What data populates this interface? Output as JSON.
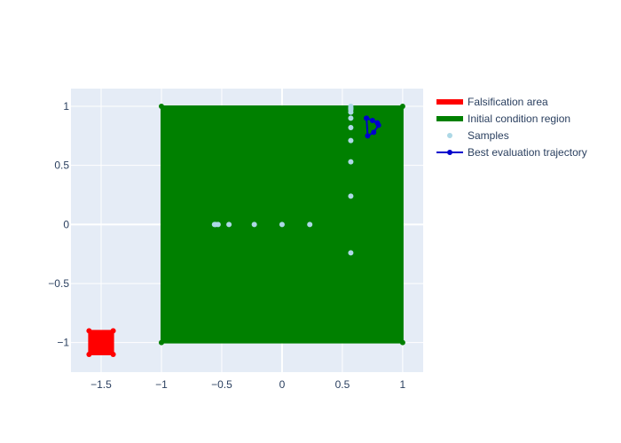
{
  "chart_data": {
    "type": "scatter",
    "title": "",
    "xlabel": "",
    "ylabel": "",
    "xlim": [
      -1.75,
      1.17
    ],
    "ylim": [
      -1.25,
      1.15
    ],
    "x_ticks": [
      -1.5,
      -1,
      -0.5,
      0,
      0.5,
      1
    ],
    "x_tick_labels": [
      "−1.5",
      "−1",
      "−0.5",
      "0",
      "0.5",
      "1"
    ],
    "y_ticks": [
      -1,
      -0.5,
      0,
      0.5,
      1
    ],
    "y_tick_labels": [
      "−1",
      "−0.5",
      "0",
      "0.5",
      "1"
    ],
    "grid": true,
    "legend_position": "top-right, outside plot",
    "series": [
      {
        "name": "Falsification area",
        "kind": "filled-polygon",
        "color": "#ff0000",
        "x": [
          -1.6,
          -1.4,
          -1.4,
          -1.6,
          -1.6
        ],
        "y": [
          -1.1,
          -1.1,
          -0.9,
          -0.9,
          -1.1
        ]
      },
      {
        "name": "Initial condition region",
        "kind": "filled-polygon",
        "color": "#008000",
        "x": [
          -1,
          1,
          1,
          -1,
          -1
        ],
        "y": [
          -1,
          -1,
          1,
          1,
          -1
        ]
      },
      {
        "name": "Samples",
        "kind": "markers",
        "color": "#add8e6",
        "x": [
          -0.56,
          -0.55,
          -0.53,
          -0.44,
          -0.23,
          0.0,
          0.23,
          0.57,
          0.57,
          0.57,
          0.57,
          0.57,
          0.57,
          0.57,
          0.57,
          0.57,
          0.57,
          0.57
        ],
        "y": [
          0.0,
          0.0,
          0.0,
          0.0,
          0.0,
          0.0,
          0.0,
          -0.24,
          0.24,
          0.53,
          0.71,
          0.82,
          0.9,
          0.95,
          0.97,
          0.98,
          0.99,
          1.0
        ]
      },
      {
        "name": "Best evaluation trajectory",
        "kind": "lines+markers",
        "color": "#0000cd",
        "x": [
          0.7,
          0.75,
          0.79,
          0.8,
          0.76,
          0.71,
          0.7
        ],
        "y": [
          0.9,
          0.88,
          0.86,
          0.84,
          0.78,
          0.75,
          0.9
        ]
      }
    ]
  }
}
